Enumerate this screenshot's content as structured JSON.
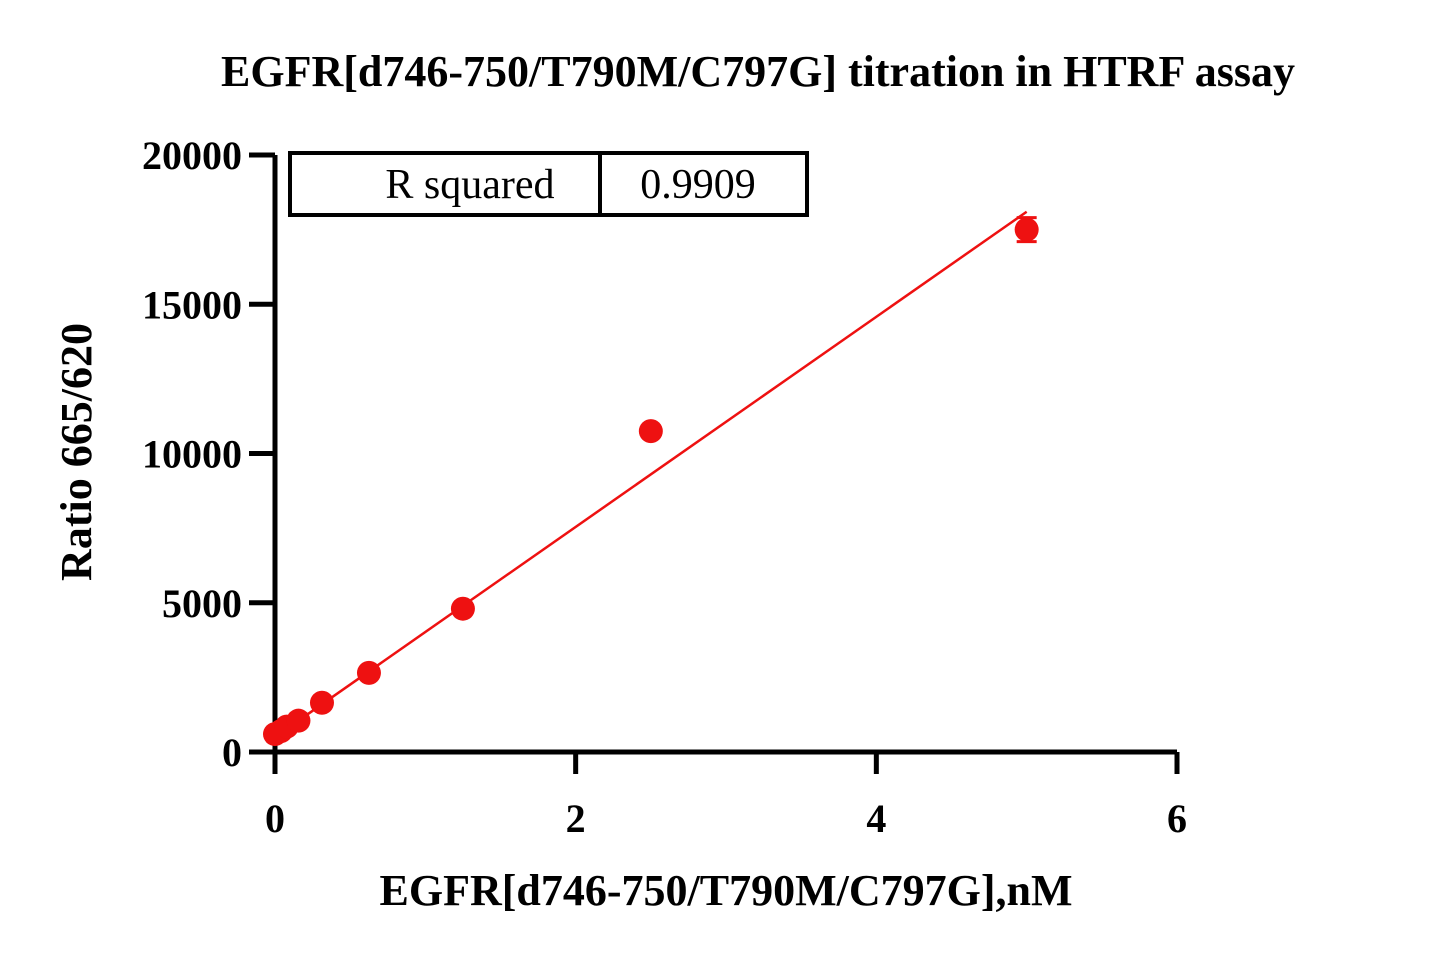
{
  "chart_data": {
    "type": "scatter",
    "title": "EGFR[d746-750/T790M/C797G] titration in HTRF assay",
    "xlabel": "EGFR[d746-750/T790M/C797G],nM",
    "ylabel": "Ratio 665/620",
    "xlim": [
      0,
      6
    ],
    "ylim": [
      0,
      20000
    ],
    "x_ticks": [
      0,
      2,
      4,
      6
    ],
    "y_ticks": [
      0,
      5000,
      10000,
      15000,
      20000
    ],
    "x_tick_labels": [
      "0",
      "2",
      "4",
      "6"
    ],
    "y_tick_labels": [
      "0",
      "5000",
      "10000",
      "15000",
      "20000"
    ],
    "grid": false,
    "legend": "none",
    "series": [
      {
        "color": "#ee1111",
        "x": [
          0.0,
          0.039,
          0.078,
          0.156,
          0.3125,
          0.625,
          1.25,
          2.5,
          5.0
        ],
        "y": [
          600,
          700,
          850,
          1050,
          1650,
          2650,
          4800,
          10750,
          17500
        ],
        "error": [
          0,
          0,
          0,
          0,
          0,
          0,
          0,
          0,
          400
        ]
      }
    ],
    "fit_line": {
      "type": "linear",
      "color": "#ee1111",
      "x": [
        0,
        5.0
      ],
      "y": [
        500,
        18100
      ]
    },
    "rsquared_table": {
      "label": "R squared",
      "value": "0.9909"
    }
  }
}
